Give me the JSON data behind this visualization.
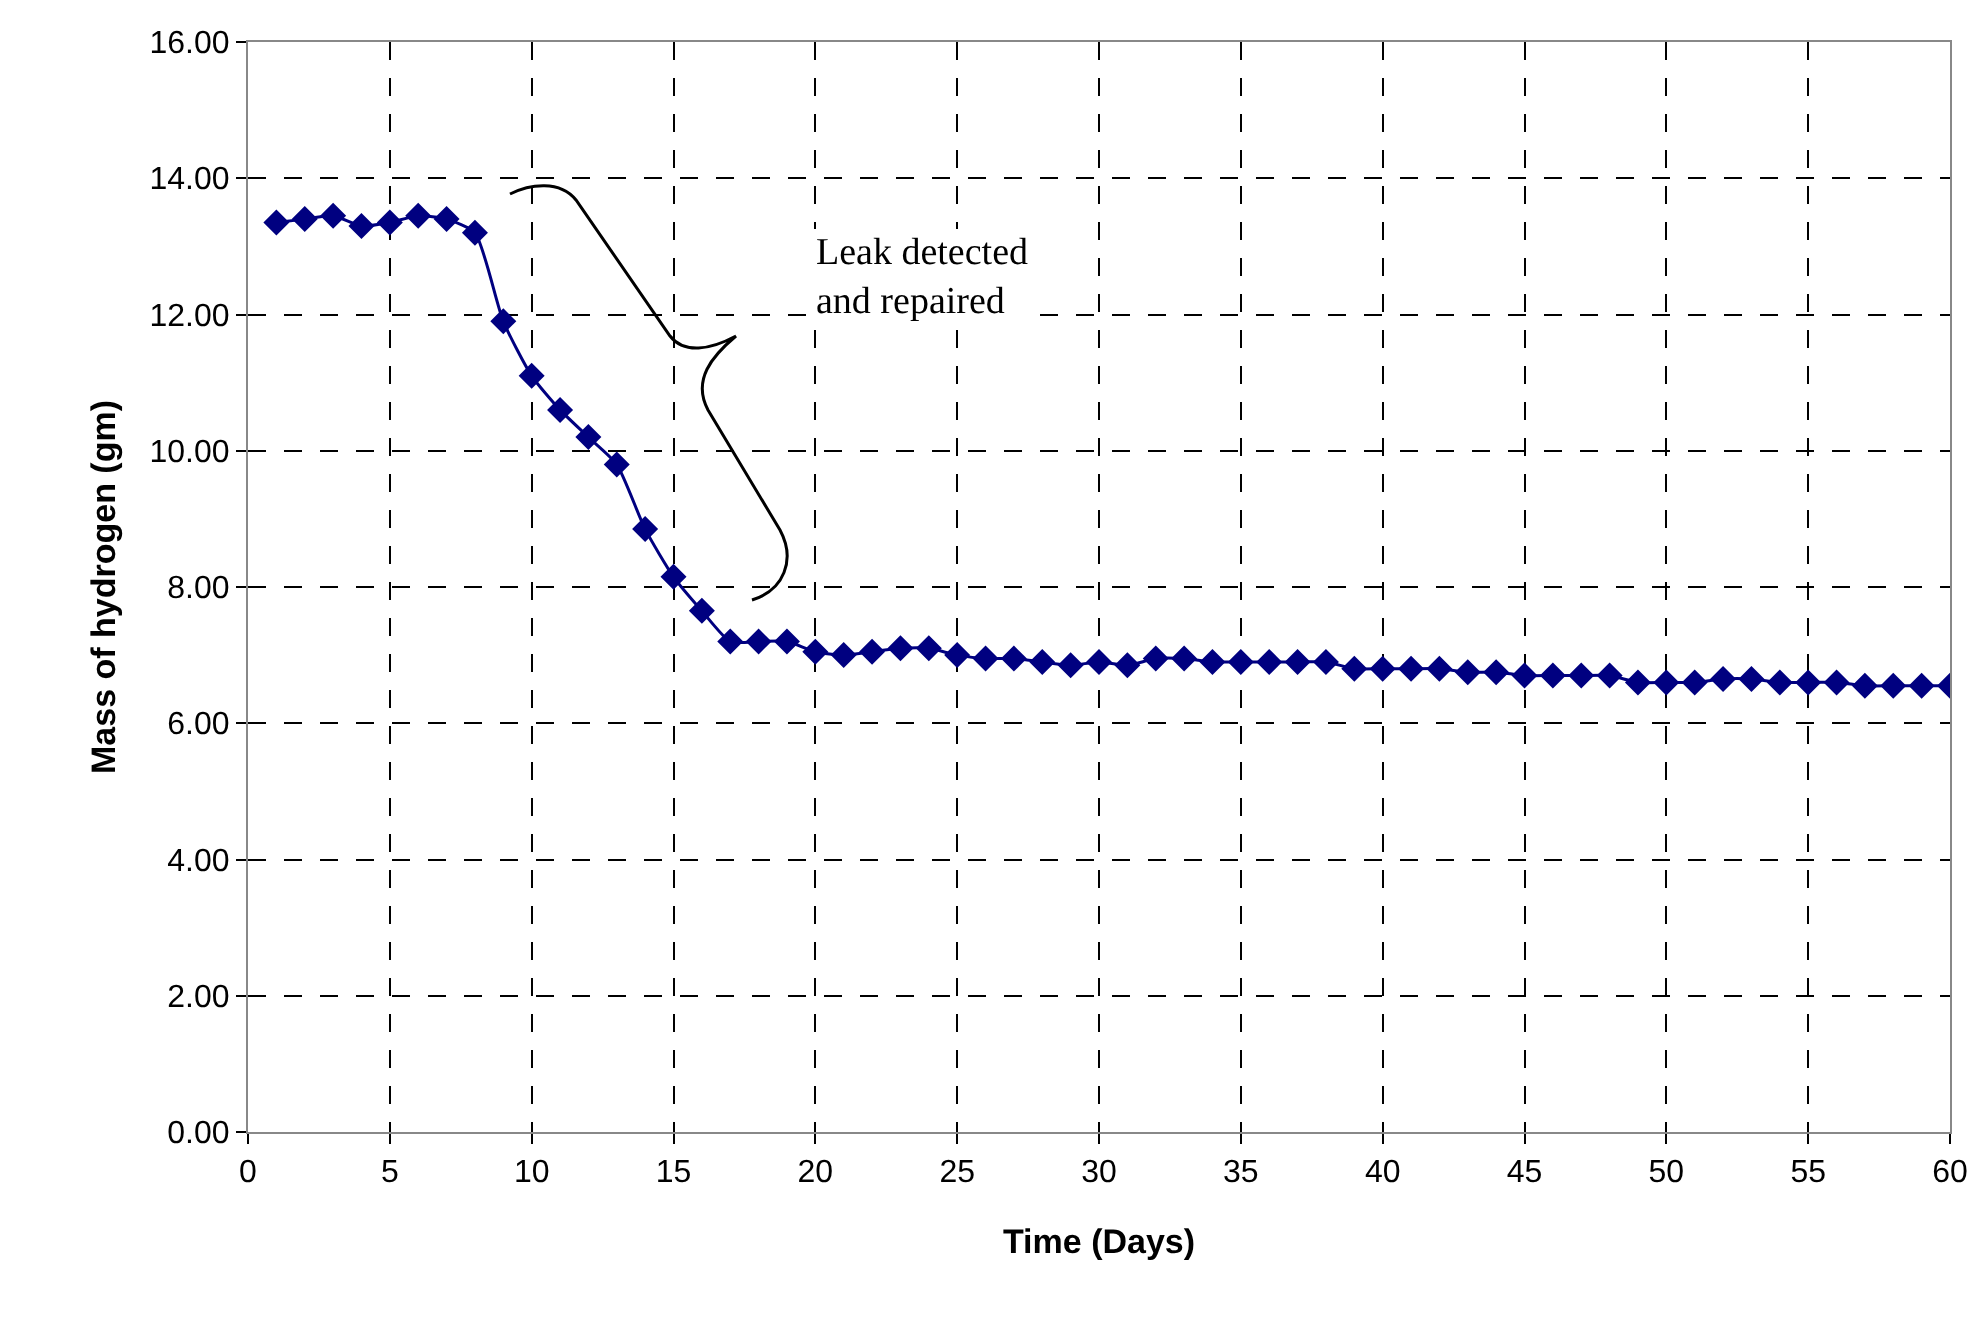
{
  "chart_data": {
    "type": "line",
    "xlabel": "Time (Days)",
    "ylabel": "Mass of hydrogen (gm)",
    "x": [
      1,
      2,
      3,
      4,
      5,
      6,
      7,
      8,
      9,
      10,
      11,
      12,
      13,
      14,
      15,
      16,
      17,
      18,
      19,
      20,
      21,
      22,
      23,
      24,
      25,
      26,
      27,
      28,
      29,
      30,
      31,
      32,
      33,
      34,
      35,
      36,
      37,
      38,
      39,
      40,
      41,
      42,
      43,
      44,
      45,
      46,
      47,
      48,
      49,
      50,
      51,
      52,
      53,
      54,
      55,
      56,
      57,
      58,
      59,
      60
    ],
    "series": [
      {
        "color": "#000080",
        "values": [
          13.35,
          13.4,
          13.45,
          13.3,
          13.35,
          13.45,
          13.4,
          13.2,
          11.9,
          11.1,
          10.6,
          10.2,
          9.8,
          8.85,
          8.15,
          7.65,
          7.2,
          7.2,
          7.2,
          7.05,
          7.0,
          7.05,
          7.1,
          7.1,
          7.0,
          6.95,
          6.95,
          6.9,
          6.85,
          6.9,
          6.85,
          6.95,
          6.95,
          6.9,
          6.9,
          6.9,
          6.9,
          6.9,
          6.8,
          6.8,
          6.8,
          6.8,
          6.75,
          6.75,
          6.7,
          6.7,
          6.7,
          6.7,
          6.6,
          6.6,
          6.6,
          6.65,
          6.65,
          6.6,
          6.6,
          6.6,
          6.55,
          6.55,
          6.55,
          6.55
        ]
      }
    ],
    "xlim": [
      0,
      60
    ],
    "xticks": [
      0,
      5,
      10,
      15,
      20,
      25,
      30,
      35,
      40,
      45,
      50,
      55,
      60
    ],
    "ylim": [
      0,
      16
    ],
    "yticks": [
      {
        "value": 0,
        "label": "0.00"
      },
      {
        "value": 2,
        "label": "2.00"
      },
      {
        "value": 4,
        "label": "4.00"
      },
      {
        "value": 6,
        "label": "6.00"
      },
      {
        "value": 8,
        "label": "8.00"
      },
      {
        "value": 10,
        "label": "10.00"
      },
      {
        "value": 12,
        "label": "12.00"
      },
      {
        "value": 14,
        "label": "14.00"
      },
      {
        "value": 16,
        "label": "16.00"
      }
    ],
    "grid": true,
    "marker": "diamond",
    "line_style": "solid",
    "annotations": [
      "Leak detected\nand repaired"
    ]
  }
}
